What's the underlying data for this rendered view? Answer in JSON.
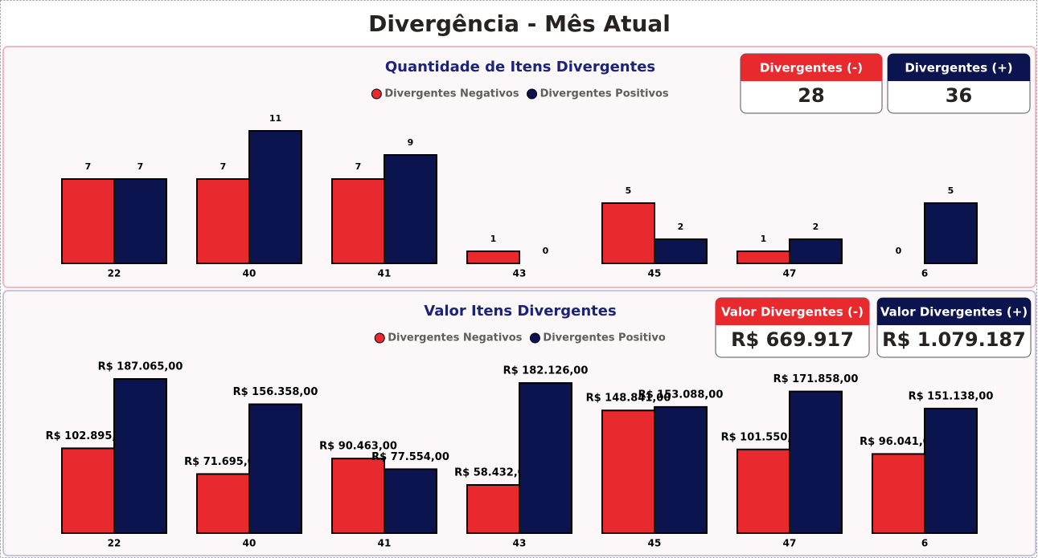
{
  "title": "Divergência - Mês Atual",
  "cards": [
    {
      "label": "Divergentes (-)",
      "value": 28,
      "color": "#e8292d"
    },
    {
      "label": "Divergentes (+)",
      "value": 36,
      "color": "#0c1450"
    },
    {
      "label": "Valor Divergentes (-)",
      "value": "R$ 669.917",
      "color": "#e8292d"
    },
    {
      "label": "Valor Divergentes (+)",
      "value": "R$ 1.079.187",
      "color": "#0c1450"
    }
  ],
  "chart_data": [
    {
      "type": "bar",
      "title": "Quantidade de Itens Divergentes",
      "categories": [
        "22",
        "40",
        "41",
        "43",
        "45",
        "47",
        "6"
      ],
      "series": [
        {
          "name": "Divergentes Negativos",
          "color": "#e8292d",
          "values": [
            7,
            7,
            7,
            1,
            5,
            1,
            0
          ]
        },
        {
          "name": "Divergentes Positivos",
          "color": "#0c1450",
          "values": [
            7,
            11,
            9,
            0,
            2,
            2,
            5
          ]
        }
      ]
    },
    {
      "type": "bar",
      "title": "Valor Itens Divergentes",
      "categories": [
        "22",
        "40",
        "41",
        "43",
        "45",
        "47",
        "6"
      ],
      "series": [
        {
          "name": "Divergentes Negativos",
          "color": "#e8292d",
          "values": [
            102895,
            71695,
            90463,
            58432,
            148841,
            101550,
            96041
          ],
          "value_labels": [
            "R$ 102.895,00",
            "R$ 71.695,00",
            "R$ 90.463,00",
            "R$ 58.432,00",
            "R$ 148.841,00",
            "R$ 101.550,00",
            "R$ 96.041,00"
          ]
        },
        {
          "name": "Divergentes Positivo",
          "color": "#0c1450",
          "values": [
            187065,
            156358,
            77554,
            182126,
            153088,
            171858,
            151138
          ],
          "value_labels": [
            "R$ 187.065,00",
            "R$ 156.358,00",
            "R$ 77.554,00",
            "R$ 182.126,00",
            "R$ 153.088,00",
            "R$ 171.858,00",
            "R$ 151.138,00"
          ]
        }
      ]
    }
  ]
}
